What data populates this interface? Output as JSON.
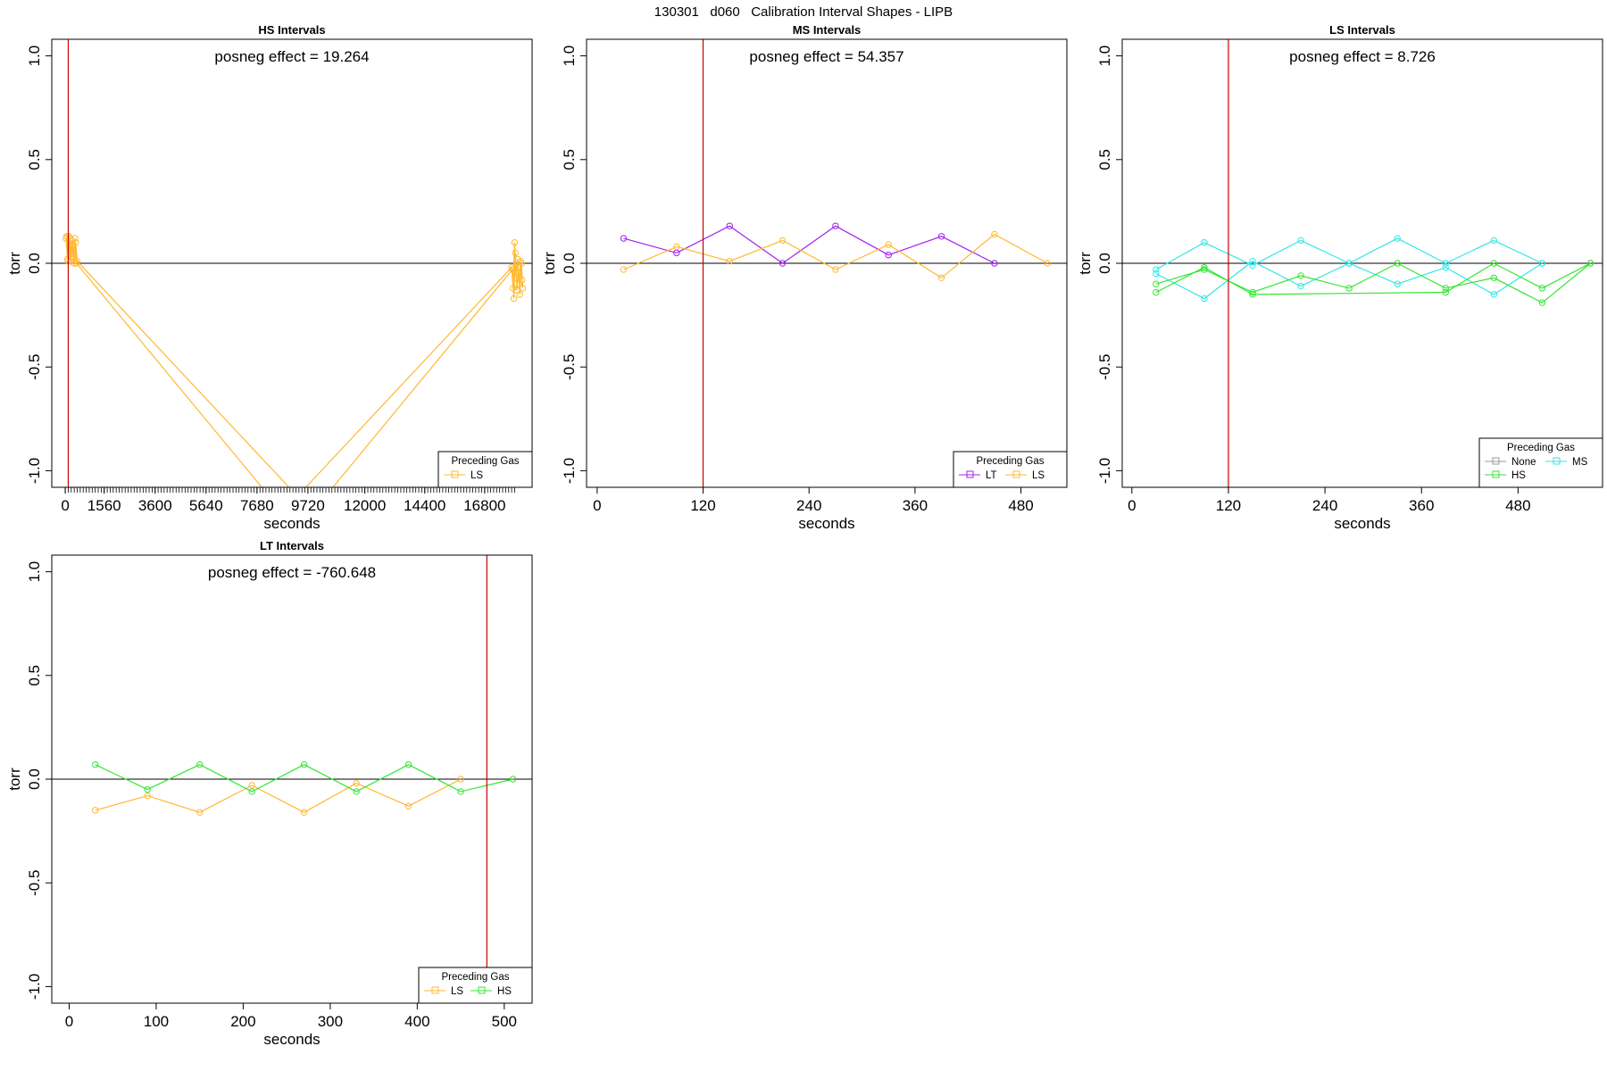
{
  "figure_title": "130301   d060   Calibration Interval Shapes - LIPB",
  "colors": {
    "LS": "#FFB833",
    "LT": "#A020F0",
    "HS": "#33E633",
    "MS": "#33E6E6",
    "None": "#999999",
    "vline": "#CC0000"
  },
  "chart_data": [
    {
      "type": "line",
      "title": "HS Intervals",
      "annotation": "posneg effect = 19.264",
      "xlabel": "seconds",
      "ylabel": "torr",
      "xlim": [
        -540,
        18700
      ],
      "ylim": [
        -1.08,
        1.08
      ],
      "xticks": [
        0,
        1560,
        3600,
        5640,
        7680,
        9720,
        12000,
        14400,
        16800
      ],
      "minor_tick_step": 120,
      "minor_tick_max": 18000,
      "yticks": [
        -1.0,
        -0.5,
        0.0,
        0.5,
        1.0
      ],
      "ytick_labels": [
        "-1.0",
        "-0.5",
        "0.0",
        "0.5",
        "1.0"
      ],
      "vline": 120,
      "hline": 0,
      "legend": {
        "title": "Preceding Gas",
        "position": "bottom-right",
        "entries": [
          "LS"
        ]
      },
      "series": [
        {
          "gas": "LS",
          "points": [
            [
              30,
              0.12
            ],
            [
              90,
              0.02
            ],
            [
              150,
              0.13
            ],
            [
              210,
              0.01
            ],
            [
              270,
              0.11
            ],
            [
              330,
              0.02
            ],
            [
              390,
              0.12
            ],
            [
              450,
              0.0
            ],
            [
              8700,
              -1.2
            ],
            [
              17880,
              -0.02
            ],
            [
              17940,
              -0.12
            ],
            [
              18000,
              0.1
            ],
            [
              18060,
              -0.07
            ],
            [
              18120,
              0.02
            ],
            [
              18180,
              -0.1
            ],
            [
              18240,
              0.01
            ],
            [
              18300,
              -0.08
            ]
          ]
        },
        {
          "gas": "LS",
          "points": [
            [
              60,
              0.13
            ],
            [
              120,
              0.01
            ],
            [
              180,
              0.12
            ],
            [
              240,
              0.03
            ],
            [
              300,
              0.09
            ],
            [
              360,
              0.0
            ],
            [
              420,
              0.1
            ],
            [
              480,
              0.01
            ],
            [
              9900,
              -1.2
            ],
            [
              17910,
              -0.03
            ],
            [
              17970,
              -0.17
            ],
            [
              18030,
              0.05
            ],
            [
              18090,
              -0.13
            ],
            [
              18150,
              -0.02
            ],
            [
              18210,
              -0.15
            ],
            [
              18270,
              0.0
            ],
            [
              18330,
              -0.12
            ]
          ]
        }
      ]
    },
    {
      "type": "line",
      "title": "MS Intervals",
      "annotation": "posneg effect = 54.357",
      "xlabel": "seconds",
      "ylabel": "torr",
      "xlim": [
        -12,
        532
      ],
      "ylim": [
        -1.08,
        1.08
      ],
      "xticks": [
        0,
        120,
        240,
        360,
        480
      ],
      "yticks": [
        -1.0,
        -0.5,
        0.0,
        0.5,
        1.0
      ],
      "ytick_labels": [
        "-1.0",
        "-0.5",
        "0.0",
        "0.5",
        "1.0"
      ],
      "vline": 120,
      "hline": 0,
      "legend": {
        "title": "Preceding Gas",
        "position": "bottom-right",
        "entries": [
          "LT",
          "LS"
        ]
      },
      "series": [
        {
          "gas": "LT",
          "points": [
            [
              30,
              0.12
            ],
            [
              90,
              0.05
            ],
            [
              150,
              0.18
            ],
            [
              210,
              0.0
            ],
            [
              270,
              0.18
            ],
            [
              330,
              0.04
            ],
            [
              390,
              0.13
            ],
            [
              450,
              0.0
            ]
          ]
        },
        {
          "gas": "LS",
          "points": [
            [
              30,
              -0.03
            ],
            [
              90,
              0.08
            ],
            [
              150,
              0.01
            ],
            [
              210,
              0.11
            ],
            [
              270,
              -0.03
            ],
            [
              330,
              0.09
            ],
            [
              390,
              -0.07
            ],
            [
              450,
              0.14
            ],
            [
              510,
              0.0
            ]
          ]
        }
      ]
    },
    {
      "type": "line",
      "title": "LS Intervals",
      "annotation": "posneg effect = 8.726",
      "xlabel": "seconds",
      "ylabel": "torr",
      "xlim": [
        -12,
        585
      ],
      "ylim": [
        -1.08,
        1.08
      ],
      "xticks": [
        0,
        120,
        240,
        360,
        480
      ],
      "yticks": [
        -1.0,
        -0.5,
        0.0,
        0.5,
        1.0
      ],
      "ytick_labels": [
        "-1.0",
        "-0.5",
        "0.0",
        "0.5",
        "1.0"
      ],
      "vline": 120,
      "hline": 0,
      "legend": {
        "title": "Preceding Gas",
        "position": "bottom-right",
        "entries": [
          "None",
          "MS",
          "HS"
        ]
      },
      "series": [
        {
          "gas": "MS",
          "points": [
            [
              30,
              -0.03
            ],
            [
              90,
              0.1
            ],
            [
              150,
              -0.01
            ],
            [
              210,
              0.11
            ],
            [
              270,
              0.0
            ],
            [
              330,
              0.12
            ],
            [
              390,
              0.0
            ],
            [
              450,
              0.11
            ],
            [
              510,
              0.0
            ]
          ]
        },
        {
          "gas": "MS",
          "points": [
            [
              30,
              -0.05
            ],
            [
              90,
              -0.17
            ],
            [
              150,
              0.01
            ],
            [
              210,
              -0.11
            ],
            [
              270,
              0.0
            ],
            [
              330,
              -0.1
            ],
            [
              390,
              -0.02
            ],
            [
              450,
              -0.15
            ],
            [
              510,
              0.0
            ]
          ]
        },
        {
          "gas": "HS",
          "points": [
            [
              30,
              -0.14
            ],
            [
              90,
              -0.02
            ],
            [
              150,
              -0.15
            ],
            [
              390,
              -0.14
            ],
            [
              450,
              0.0
            ],
            [
              510,
              -0.12
            ],
            [
              570,
              0.0
            ]
          ]
        },
        {
          "gas": "HS",
          "points": [
            [
              30,
              -0.1
            ],
            [
              90,
              -0.03
            ],
            [
              150,
              -0.14
            ],
            [
              210,
              -0.06
            ],
            [
              270,
              -0.12
            ],
            [
              330,
              0.0
            ],
            [
              390,
              -0.12
            ],
            [
              450,
              -0.07
            ],
            [
              510,
              -0.19
            ],
            [
              570,
              0.0
            ]
          ]
        }
      ]
    },
    {
      "type": "line",
      "title": "LT Intervals",
      "annotation": "posneg effect = -760.648",
      "xlabel": "seconds",
      "ylabel": "torr",
      "xlim": [
        -20,
        532
      ],
      "ylim": [
        -1.08,
        1.08
      ],
      "xticks": [
        0,
        100,
        200,
        300,
        400,
        500
      ],
      "yticks": [
        -1.0,
        -0.5,
        0.0,
        0.5,
        1.0
      ],
      "ytick_labels": [
        "-1.0",
        "-0.5",
        "0.0",
        "0.5",
        "1.0"
      ],
      "vline": 480,
      "hline": 0,
      "legend": {
        "title": "Preceding Gas",
        "position": "bottom-right",
        "entries": [
          "LS",
          "HS"
        ]
      },
      "series": [
        {
          "gas": "LS",
          "points": [
            [
              30,
              -0.15
            ],
            [
              90,
              -0.08
            ],
            [
              150,
              -0.16
            ],
            [
              210,
              -0.03
            ],
            [
              270,
              -0.16
            ],
            [
              330,
              -0.02
            ],
            [
              390,
              -0.13
            ],
            [
              450,
              0.0
            ]
          ]
        },
        {
          "gas": "HS",
          "points": [
            [
              30,
              0.07
            ],
            [
              90,
              -0.05
            ],
            [
              150,
              0.07
            ],
            [
              210,
              -0.06
            ],
            [
              270,
              0.07
            ],
            [
              330,
              -0.06
            ],
            [
              390,
              0.07
            ],
            [
              450,
              -0.06
            ],
            [
              510,
              0.0
            ]
          ]
        }
      ]
    }
  ]
}
